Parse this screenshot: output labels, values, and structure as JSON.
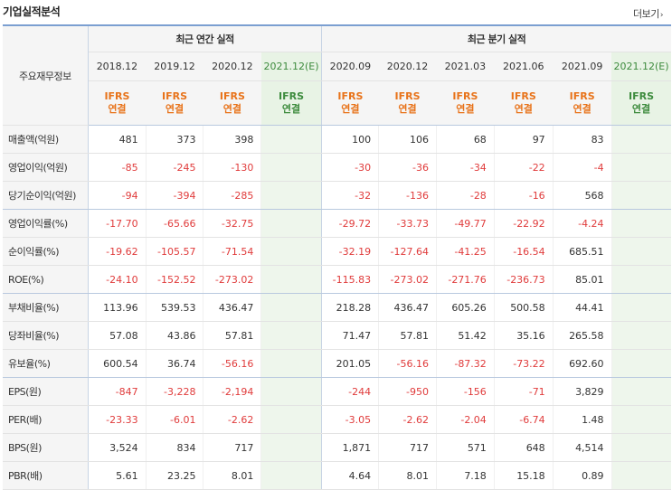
{
  "page": {
    "title": "기업실적분석",
    "more": "더보기",
    "more_arrow": "›"
  },
  "headers": {
    "row_label": "주요재무정보",
    "annual": "최근 연간 실적",
    "quarterly": "최근 분기 실적",
    "ifrs_top": "IFRS",
    "ifrs_bottom": "연결",
    "annual_periods": [
      "2018.12",
      "2019.12",
      "2020.12",
      "2021.12(E)"
    ],
    "quarter_periods": [
      "2020.09",
      "2020.12",
      "2021.03",
      "2021.06",
      "2021.09",
      "2021.12(E)"
    ]
  },
  "rows": [
    {
      "label": "매출액(억원)",
      "values": [
        "481",
        "373",
        "398",
        "",
        "100",
        "106",
        "68",
        "97",
        "83",
        ""
      ]
    },
    {
      "label": "영업이익(억원)",
      "values": [
        "-85",
        "-245",
        "-130",
        "",
        "-30",
        "-36",
        "-34",
        "-22",
        "-4",
        ""
      ]
    },
    {
      "label": "당기순이익(억원)",
      "values": [
        "-94",
        "-394",
        "-285",
        "",
        "-32",
        "-136",
        "-28",
        "-16",
        "568",
        ""
      ]
    },
    {
      "label": "영업이익률(%)",
      "values": [
        "-17.70",
        "-65.66",
        "-32.75",
        "",
        "-29.72",
        "-33.73",
        "-49.77",
        "-22.92",
        "-4.24",
        ""
      ]
    },
    {
      "label": "순이익률(%)",
      "values": [
        "-19.62",
        "-105.57",
        "-71.54",
        "",
        "-32.19",
        "-127.64",
        "-41.25",
        "-16.54",
        "685.51",
        ""
      ]
    },
    {
      "label": "ROE(%)",
      "values": [
        "-24.10",
        "-152.52",
        "-273.02",
        "",
        "-115.83",
        "-273.02",
        "-271.76",
        "-236.73",
        "85.01",
        ""
      ]
    },
    {
      "label": "부채비율(%)",
      "values": [
        "113.96",
        "539.53",
        "436.47",
        "",
        "218.28",
        "436.47",
        "605.26",
        "500.58",
        "44.41",
        ""
      ]
    },
    {
      "label": "당좌비율(%)",
      "values": [
        "57.08",
        "43.86",
        "57.81",
        "",
        "71.47",
        "57.81",
        "51.42",
        "35.16",
        "265.58",
        ""
      ]
    },
    {
      "label": "유보율(%)",
      "values": [
        "600.54",
        "36.74",
        "-56.16",
        "",
        "201.05",
        "-56.16",
        "-87.32",
        "-73.22",
        "692.60",
        ""
      ]
    },
    {
      "label": "EPS(원)",
      "values": [
        "-847",
        "-3,228",
        "-2,194",
        "",
        "-244",
        "-950",
        "-156",
        "-71",
        "3,829",
        ""
      ]
    },
    {
      "label": "PER(배)",
      "values": [
        "-23.33",
        "-6.01",
        "-2.62",
        "",
        "-3.05",
        "-2.62",
        "-2.04",
        "-6.74",
        "1.48",
        ""
      ]
    },
    {
      "label": "BPS(원)",
      "values": [
        "3,524",
        "834",
        "717",
        "",
        "1,871",
        "717",
        "571",
        "648",
        "4,514",
        ""
      ]
    },
    {
      "label": "PBR(배)",
      "values": [
        "5.61",
        "23.25",
        "8.01",
        "",
        "4.64",
        "8.01",
        "7.18",
        "15.18",
        "0.89",
        ""
      ]
    }
  ],
  "colors": {
    "negative": "#e03b3b",
    "ifrs": "#e8731a",
    "estimate_bg": "#eef6ec",
    "estimate_text": "#3d8b3d",
    "top_border": "#7b9fd1"
  }
}
